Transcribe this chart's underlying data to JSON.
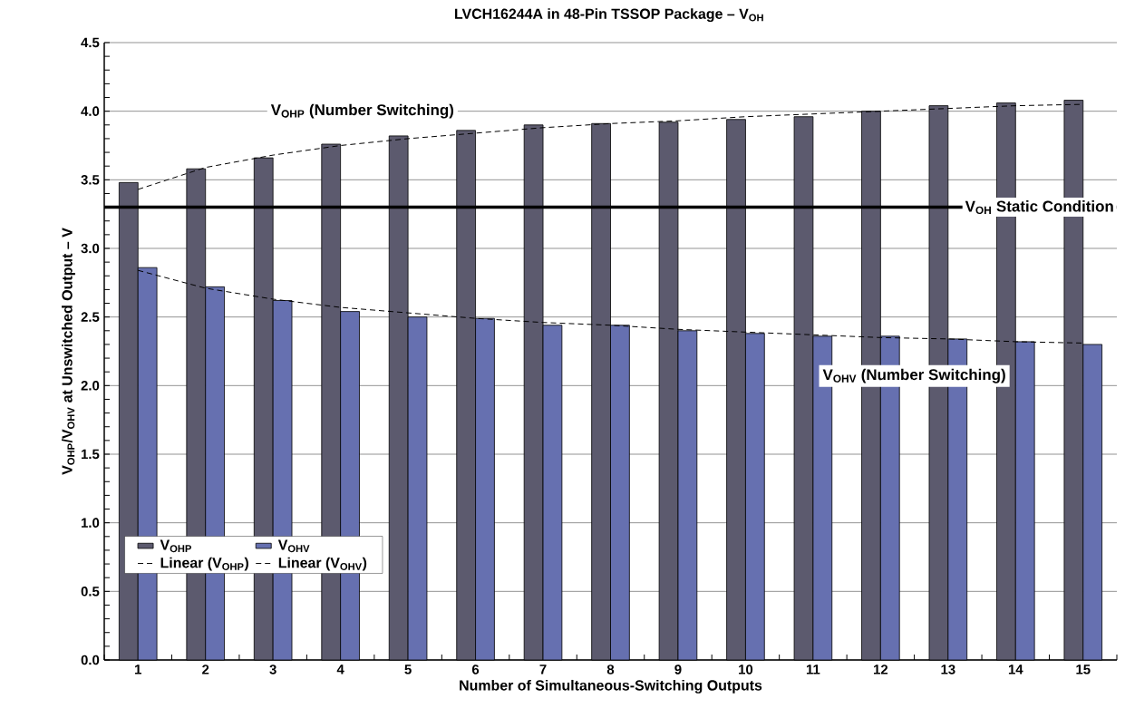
{
  "chart_data": {
    "type": "bar",
    "title": "LVCH16244A in 48-Pin TSSOP Package – V$_{OH}$",
    "xlabel": "Number of Simultaneous-Switching Outputs",
    "ylabel": "V$_{OHP}$/V$_{OHV}$ at Unswitched Output – V",
    "categories": [
      "1",
      "2",
      "3",
      "4",
      "5",
      "6",
      "7",
      "8",
      "9",
      "10",
      "11",
      "12",
      "13",
      "14",
      "15"
    ],
    "series": [
      {
        "name": "V$_{OHP}$",
        "color": "#5c5a6e",
        "values": [
          3.48,
          3.58,
          3.66,
          3.76,
          3.82,
          3.86,
          3.9,
          3.91,
          3.92,
          3.94,
          3.96,
          4.0,
          4.04,
          4.06,
          4.08
        ]
      },
      {
        "name": "V$_{OHV}$",
        "color": "#6670b0",
        "values": [
          2.86,
          2.72,
          2.62,
          2.54,
          2.5,
          2.49,
          2.44,
          2.44,
          2.4,
          2.38,
          2.36,
          2.36,
          2.34,
          2.32,
          2.3
        ]
      },
      {
        "name": "Linear (V$_{OHP}$)",
        "type": "line",
        "line_style": "dashed",
        "color": "#000000",
        "values": [
          3.43,
          3.59,
          3.68,
          3.75,
          3.8,
          3.84,
          3.88,
          3.91,
          3.93,
          3.96,
          3.98,
          4.0,
          4.02,
          4.04,
          4.05
        ]
      },
      {
        "name": "Linear (V$_{OHV}$)",
        "type": "line",
        "line_style": "dashed",
        "color": "#000000",
        "values": [
          2.84,
          2.71,
          2.63,
          2.57,
          2.53,
          2.49,
          2.46,
          2.44,
          2.41,
          2.39,
          2.37,
          2.35,
          2.34,
          2.32,
          2.31
        ]
      }
    ],
    "ylim": [
      0,
      4.5
    ],
    "yticks": [
      {
        "value": 0,
        "label": "0.0"
      },
      {
        "value": 0.5,
        "label": "0.5"
      },
      {
        "value": 1,
        "label": "1.0"
      },
      {
        "value": 1.5,
        "label": "1.5"
      },
      {
        "value": 2,
        "label": "2.0"
      },
      {
        "value": 2.5,
        "label": "2.5"
      },
      {
        "value": 3,
        "label": "3.0"
      },
      {
        "value": 3.5,
        "label": "3.5"
      },
      {
        "value": 4,
        "label": "4.0"
      },
      {
        "value": 4.5,
        "label": "4.5"
      }
    ],
    "ref_lines": [
      {
        "axis": "y",
        "value": 3.3,
        "label": "V$_{OH}$ Static Condition",
        "color": "#000000"
      }
    ],
    "annotations": [
      "V$_{OHP}$ (Number Switching)",
      "V$_{OHV}$ (Number Switching)"
    ],
    "grid": "y",
    "legend": "bottom left",
    "marker": "none"
  }
}
